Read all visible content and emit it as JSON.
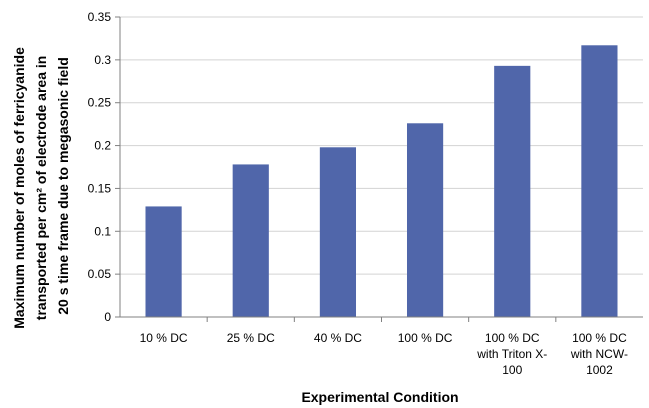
{
  "chart_data": {
    "type": "bar",
    "categories": [
      [
        "10 % DC"
      ],
      [
        "25 % DC"
      ],
      [
        "40 % DC"
      ],
      [
        "100 % DC"
      ],
      [
        "100 % DC",
        "with Triton X-",
        "100"
      ],
      [
        "100 % DC",
        "with NCW-",
        "1002"
      ]
    ],
    "values": [
      0.129,
      0.178,
      0.198,
      0.226,
      0.293,
      0.317
    ],
    "xlabel": "Experimental Condition",
    "ylabel_lines": [
      "Maximum number of moles of ferricyanide",
      "transported per cm² of electrode area in",
      "20 s time frame due to megasonic field"
    ],
    "ylim": [
      0,
      0.35
    ],
    "yticks": [
      "0",
      "0.05",
      "0.1",
      "0.15",
      "0.2",
      "0.25",
      "0.3",
      "0.35"
    ],
    "grid": true,
    "bar_color": "#5066aa",
    "grid_color": "#d3d3d3",
    "axis_color": "#808080"
  }
}
